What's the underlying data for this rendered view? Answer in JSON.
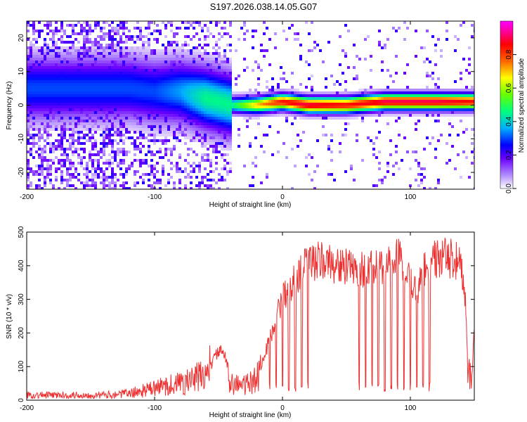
{
  "title": "S197.2026.038.14.05.G07",
  "chart_data": [
    {
      "type": "heatmap",
      "xlabel": "Height of straight line (km)",
      "ylabel": "Frequency (Hz)",
      "xlim": [
        -200,
        150
      ],
      "ylim": [
        -25,
        25
      ],
      "xticks": [
        -200,
        -100,
        0,
        100
      ],
      "yticks": [
        -20,
        -10,
        0,
        10,
        20
      ],
      "colorbar": {
        "label": "Normalized spectral amplitude",
        "range": [
          0,
          1
        ],
        "ticks": [
          "0.0",
          "0.2",
          "0.4",
          "0.6",
          "0.8"
        ],
        "tick_values": [
          0,
          0.2,
          0.4,
          0.6,
          0.8
        ],
        "colors": [
          "#ffffff",
          "#b38cff",
          "#6a00ff",
          "#0000ff",
          "#00b0ff",
          "#00ff7f",
          "#66ff00",
          "#ffff00",
          "#ff6600",
          "#ff0000",
          "#ff00a0",
          "#ff00ff"
        ]
      },
      "ridge": {
        "description": "dominant frequency near 0 Hz for heights above about -40 km",
        "x": [
          -120,
          -100,
          -80,
          -60,
          -40,
          -20,
          0,
          20,
          50,
          80,
          100,
          120,
          150
        ],
        "frequency_hz": [
          5,
          4,
          4,
          2,
          0,
          0,
          1,
          0,
          0,
          1,
          1,
          1,
          1
        ],
        "peak_amplitude": [
          0.3,
          0.3,
          0.35,
          0.45,
          0.45,
          0.7,
          0.85,
          0.9,
          0.85,
          0.9,
          0.9,
          0.9,
          0.85
        ]
      }
    },
    {
      "type": "line",
      "xlabel": "Height of straight line (km)",
      "ylabel": "SNR (10 * v/v)",
      "xlim": [
        -200,
        150
      ],
      "ylim": [
        0,
        500
      ],
      "xticks": [
        -200,
        -100,
        0,
        100
      ],
      "yticks": [
        0,
        100,
        200,
        300,
        400,
        500
      ],
      "series": [
        {
          "name": "SNR",
          "color": "#ee3030",
          "x": [
            -200,
            -180,
            -160,
            -140,
            -120,
            -100,
            -90,
            -80,
            -70,
            -60,
            -55,
            -50,
            -45,
            -40,
            -35,
            -30,
            -25,
            -20,
            -15,
            -10,
            -5,
            0,
            5,
            10,
            15,
            20,
            25,
            30,
            35,
            40,
            45,
            50,
            55,
            60,
            65,
            70,
            75,
            80,
            85,
            90,
            95,
            100,
            105,
            110,
            115,
            120,
            125,
            130,
            135,
            140,
            143,
            145,
            148,
            150
          ],
          "values": [
            15,
            15,
            15,
            15,
            20,
            35,
            45,
            50,
            60,
            80,
            110,
            150,
            130,
            60,
            45,
            45,
            50,
            70,
            120,
            180,
            250,
            300,
            330,
            360,
            385,
            405,
            410,
            415,
            410,
            405,
            400,
            395,
            390,
            390,
            390,
            390,
            390,
            395,
            420,
            430,
            400,
            350,
            320,
            390,
            410,
            420,
            425,
            420,
            420,
            395,
            300,
            80,
            60,
            230
          ],
          "dropouts": [
            -10,
            -5,
            0,
            5,
            10,
            15,
            20,
            60,
            65,
            70,
            75,
            80,
            85,
            90,
            95,
            100,
            105,
            110,
            115
          ]
        }
      ]
    }
  ]
}
